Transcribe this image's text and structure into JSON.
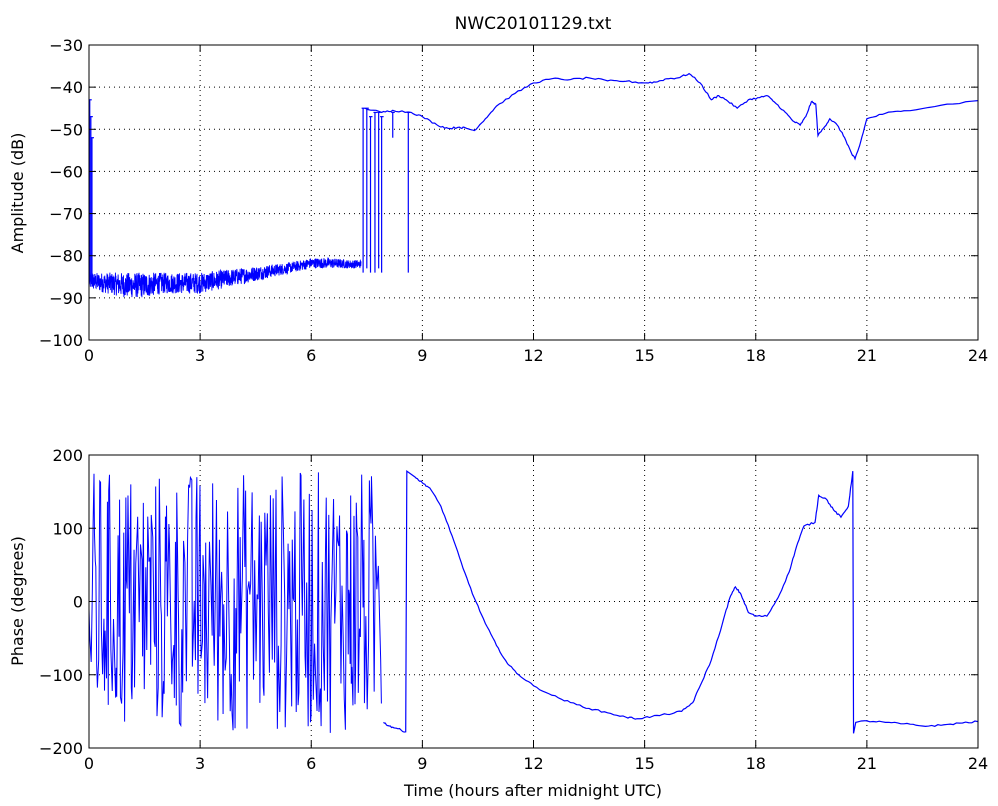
{
  "chart_data": [
    {
      "type": "line",
      "title": "NWC20101129.txt",
      "xlabel": "",
      "ylabel": "Amplitude (dB)",
      "xlim": [
        0,
        24
      ],
      "ylim": [
        -100,
        -30
      ],
      "x_ticks": [
        0,
        3,
        6,
        9,
        12,
        15,
        18,
        21,
        24
      ],
      "y_ticks": [
        -100,
        -90,
        -80,
        -70,
        -60,
        -50,
        -40,
        -30
      ],
      "grid": true,
      "line_color": "#0000ff",
      "series": [
        {
          "noise_bands": [
            {
              "x": 0.0,
              "lo": -88,
              "hi": -84
            },
            {
              "x": 0.5,
              "lo": -89,
              "hi": -84
            },
            {
              "x": 1.0,
              "lo": -90,
              "hi": -84
            },
            {
              "x": 1.5,
              "lo": -90,
              "hi": -84
            },
            {
              "x": 2.0,
              "lo": -89,
              "hi": -84
            },
            {
              "x": 2.5,
              "lo": -89,
              "hi": -84
            },
            {
              "x": 3.0,
              "lo": -89,
              "hi": -84
            },
            {
              "x": 3.5,
              "lo": -88,
              "hi": -83.5
            },
            {
              "x": 4.0,
              "lo": -87,
              "hi": -83
            },
            {
              "x": 4.5,
              "lo": -86,
              "hi": -82.5
            },
            {
              "x": 5.0,
              "lo": -85,
              "hi": -82
            },
            {
              "x": 5.5,
              "lo": -84,
              "hi": -81.5
            },
            {
              "x": 6.0,
              "lo": -83,
              "hi": -80.5
            },
            {
              "x": 6.5,
              "lo": -83,
              "hi": -80.5
            },
            {
              "x": 7.0,
              "lo": -83,
              "hi": -81
            },
            {
              "x": 7.35,
              "lo": -83,
              "hi": -81
            }
          ],
          "spikes": [
            {
              "x": 0.02,
              "lo": -86,
              "hi": -43
            },
            {
              "x": 0.05,
              "lo": -86,
              "hi": -47
            },
            {
              "x": 0.08,
              "lo": -86,
              "hi": -52
            },
            {
              "x": 7.4,
              "lo": -84,
              "hi": -45
            },
            {
              "x": 7.5,
              "lo": -83,
              "hi": -45
            },
            {
              "x": 7.6,
              "lo": -84,
              "hi": -47
            },
            {
              "x": 7.72,
              "lo": -84,
              "hi": -46
            },
            {
              "x": 7.82,
              "lo": -83,
              "hi": -46
            },
            {
              "x": 7.9,
              "lo": -84,
              "hi": -47
            },
            {
              "x": 8.2,
              "lo": -52,
              "hi": -46
            },
            {
              "x": 8.62,
              "lo": -84,
              "hi": -46
            }
          ],
          "points": [
            [
              7.45,
              -45
            ],
            [
              7.9,
              -46
            ],
            [
              8.2,
              -45.5
            ],
            [
              8.7,
              -46
            ],
            [
              9.0,
              -47
            ],
            [
              9.4,
              -49
            ],
            [
              9.7,
              -49.8
            ],
            [
              10.0,
              -49.5
            ],
            [
              10.2,
              -49.8
            ],
            [
              10.4,
              -50.3
            ],
            [
              10.7,
              -47.5
            ],
            [
              11.0,
              -44.5
            ],
            [
              11.5,
              -41.5
            ],
            [
              12.0,
              -39
            ],
            [
              12.5,
              -38
            ],
            [
              13.0,
              -38.2
            ],
            [
              13.5,
              -37.8
            ],
            [
              14.0,
              -38.5
            ],
            [
              14.5,
              -38.6
            ],
            [
              15.0,
              -39
            ],
            [
              15.3,
              -38.8
            ],
            [
              15.6,
              -38
            ],
            [
              15.9,
              -37.8
            ],
            [
              16.2,
              -36.8
            ],
            [
              16.5,
              -39
            ],
            [
              16.8,
              -43
            ],
            [
              17.0,
              -42
            ],
            [
              17.2,
              -43
            ],
            [
              17.5,
              -45
            ],
            [
              17.8,
              -43
            ],
            [
              18.1,
              -42.5
            ],
            [
              18.3,
              -42
            ],
            [
              18.5,
              -43.5
            ],
            [
              18.8,
              -46
            ],
            [
              19.0,
              -48
            ],
            [
              19.2,
              -49
            ],
            [
              19.35,
              -47
            ],
            [
              19.5,
              -43.5
            ],
            [
              19.62,
              -44
            ],
            [
              19.68,
              -51.5
            ],
            [
              19.85,
              -49.5
            ],
            [
              20.0,
              -47.5
            ],
            [
              20.2,
              -49
            ],
            [
              20.4,
              -52
            ],
            [
              20.6,
              -56
            ],
            [
              20.68,
              -57
            ],
            [
              20.8,
              -54
            ],
            [
              21.0,
              -47.5
            ],
            [
              21.5,
              -46.2
            ],
            [
              22.0,
              -45.6
            ],
            [
              23.0,
              -44.3
            ],
            [
              24.0,
              -43.2
            ]
          ]
        }
      ]
    },
    {
      "type": "line",
      "title": "",
      "xlabel": "Time (hours after midnight UTC)",
      "ylabel": "Phase (degrees)",
      "xlim": [
        0,
        24
      ],
      "ylim": [
        -200,
        200
      ],
      "x_ticks": [
        0,
        3,
        6,
        9,
        12,
        15,
        18,
        21,
        24
      ],
      "y_ticks": [
        -200,
        -100,
        0,
        100,
        200
      ],
      "grid": true,
      "line_color": "#0000ff",
      "series": [
        {
          "wrap_range": [
            0.0,
            7.9
          ],
          "wrap_limits": [
            -180,
            180
          ],
          "points": [
            [
              7.95,
              -165
            ],
            [
              8.1,
              -170
            ],
            [
              8.3,
              -173
            ],
            [
              8.55,
              -178
            ],
            [
              8.58,
              178
            ],
            [
              8.8,
              170
            ],
            [
              9.0,
              162
            ],
            [
              9.2,
              155
            ],
            [
              9.5,
              130
            ],
            [
              9.8,
              90
            ],
            [
              10.1,
              45
            ],
            [
              10.4,
              5
            ],
            [
              10.7,
              -30
            ],
            [
              11.0,
              -60
            ],
            [
              11.3,
              -85
            ],
            [
              11.6,
              -100
            ],
            [
              12.0,
              -115
            ],
            [
              12.5,
              -128
            ],
            [
              13.0,
              -138
            ],
            [
              13.5,
              -146
            ],
            [
              14.0,
              -152
            ],
            [
              14.5,
              -158
            ],
            [
              14.8,
              -160
            ],
            [
              15.2,
              -157
            ],
            [
              15.6,
              -154
            ],
            [
              16.0,
              -150
            ],
            [
              16.3,
              -138
            ],
            [
              16.5,
              -115
            ],
            [
              16.8,
              -80
            ],
            [
              17.1,
              -30
            ],
            [
              17.3,
              5
            ],
            [
              17.45,
              20
            ],
            [
              17.6,
              10
            ],
            [
              17.8,
              -15
            ],
            [
              18.0,
              -20
            ],
            [
              18.3,
              -20
            ],
            [
              18.6,
              5
            ],
            [
              18.9,
              40
            ],
            [
              19.1,
              75
            ],
            [
              19.3,
              103
            ],
            [
              19.6,
              108
            ],
            [
              19.7,
              145
            ],
            [
              19.9,
              140
            ],
            [
              20.1,
              125
            ],
            [
              20.3,
              115
            ],
            [
              20.5,
              130
            ],
            [
              20.62,
              178
            ],
            [
              20.64,
              -180
            ],
            [
              20.7,
              -165
            ],
            [
              21.0,
              -163
            ],
            [
              21.5,
              -165
            ],
            [
              22.0,
              -167
            ],
            [
              22.5,
              -170
            ],
            [
              23.0,
              -169
            ],
            [
              23.5,
              -166
            ],
            [
              24.0,
              -164
            ]
          ]
        }
      ]
    }
  ]
}
